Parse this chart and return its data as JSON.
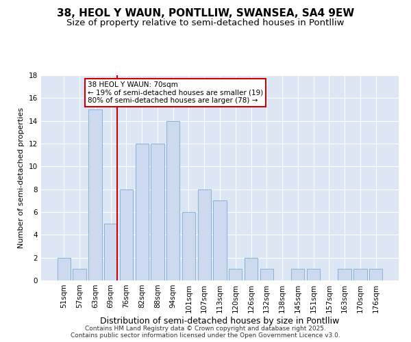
{
  "title1": "38, HEOL Y WAUN, PONTLLIW, SWANSEA, SA4 9EW",
  "title2": "Size of property relative to semi-detached houses in Pontlliw",
  "xlabel": "Distribution of semi-detached houses by size in Pontlliw",
  "ylabel": "Number of semi-detached properties",
  "categories": [
    "51sqm",
    "57sqm",
    "63sqm",
    "69sqm",
    "76sqm",
    "82sqm",
    "88sqm",
    "94sqm",
    "101sqm",
    "107sqm",
    "113sqm",
    "120sqm",
    "126sqm",
    "132sqm",
    "138sqm",
    "145sqm",
    "151sqm",
    "157sqm",
    "163sqm",
    "170sqm",
    "176sqm"
  ],
  "values": [
    2,
    1,
    15,
    5,
    8,
    12,
    12,
    14,
    6,
    8,
    7,
    1,
    2,
    1,
    0,
    1,
    1,
    0,
    1,
    1,
    1
  ],
  "bar_color": "#ccd9ee",
  "bar_edgecolor": "#7aaad4",
  "red_line_index": 3,
  "annotation_line1": "38 HEOL Y WAUN: 70sqm",
  "annotation_line2": "← 19% of semi-detached houses are smaller (19)",
  "annotation_line3": "80% of semi-detached houses are larger (78) →",
  "annotation_box_color": "#ffffff",
  "annotation_box_edgecolor": "#cc0000",
  "red_line_color": "#cc0000",
  "ylim": [
    0,
    18
  ],
  "yticks": [
    0,
    2,
    4,
    6,
    8,
    10,
    12,
    14,
    16,
    18
  ],
  "bg_color": "#dde6f5",
  "grid_color": "#ffffff",
  "footer": "Contains HM Land Registry data © Crown copyright and database right 2025.\nContains public sector information licensed under the Open Government Licence v3.0.",
  "title1_fontsize": 11,
  "title2_fontsize": 9.5,
  "xlabel_fontsize": 9,
  "ylabel_fontsize": 8,
  "tick_fontsize": 7.5,
  "annotation_fontsize": 7.5,
  "footer_fontsize": 6.5
}
